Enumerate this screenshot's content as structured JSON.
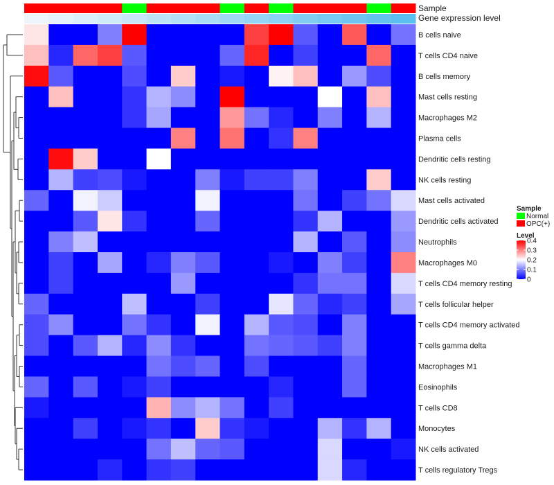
{
  "chart_data": {
    "type": "heatmap",
    "title": "",
    "annotation_tracks": [
      {
        "name": "Sample",
        "values": [
          "OPC(+)",
          "OPC(+)",
          "OPC(+)",
          "OPC(+)",
          "Normal",
          "OPC(+)",
          "OPC(+)",
          "OPC(+)",
          "Normal",
          "OPC(+)",
          "Normal",
          "OPC(+)",
          "OPC(+)",
          "OPC(+)",
          "Normal",
          "OPC(+)"
        ]
      },
      {
        "name": "Gene expression level",
        "values": [
          0.0,
          0.02,
          0.04,
          0.06,
          0.08,
          0.1,
          0.12,
          0.14,
          0.16,
          0.18,
          0.2,
          0.22,
          0.24,
          0.26,
          0.28,
          0.3
        ]
      }
    ],
    "rows": [
      "B cells naive",
      "T cells CD4 naive",
      "B cells memory",
      "Mast cells resting",
      "Macrophages M2",
      "Plasma cells",
      "Dendritic cells resting",
      "NK cells resting",
      "Mast cells activated",
      "Dendritic cells activated",
      "Neutrophils",
      "Macrophages M0",
      "T cells CD4 memory resting",
      "T cells follicular helper",
      "T cells CD4 memory activated",
      "T cells gamma delta",
      "Macrophages M1",
      "Eosinophils",
      "T cells CD8",
      "Monocytes",
      "NK cells activated",
      "T cells regulatory  Tregs"
    ],
    "n_columns": 16,
    "values": [
      [
        0.22,
        0.0,
        0.0,
        0.1,
        0.4,
        0.0,
        0.0,
        0.0,
        0.0,
        0.35,
        0.4,
        0.07,
        0.0,
        0.33,
        0.0,
        0.09
      ],
      [
        0.25,
        0.03,
        0.32,
        0.35,
        0.07,
        0.0,
        0.0,
        0.0,
        0.08,
        0.37,
        0.0,
        0.05,
        0.0,
        0.0,
        0.32,
        0.0
      ],
      [
        0.39,
        0.07,
        0.0,
        0.0,
        0.06,
        0.0,
        0.24,
        0.0,
        0.02,
        0.0,
        0.21,
        0.25,
        0.0,
        0.12,
        0.06,
        0.0
      ],
      [
        0.0,
        0.25,
        0.0,
        0.0,
        0.04,
        0.14,
        0.11,
        0.0,
        0.4,
        0.0,
        0.0,
        0.0,
        0.2,
        0.0,
        0.25,
        0.0
      ],
      [
        0.0,
        0.0,
        0.0,
        0.0,
        0.04,
        0.13,
        0.0,
        0.0,
        0.28,
        0.09,
        0.03,
        0.0,
        0.1,
        0.0,
        0.14,
        0.0
      ],
      [
        0.0,
        0.0,
        0.0,
        0.0,
        0.0,
        0.0,
        0.3,
        0.0,
        0.31,
        0.0,
        0.04,
        0.3,
        0.0,
        0.0,
        0.0,
        0.0
      ],
      [
        0.0,
        0.39,
        0.24,
        0.0,
        0.0,
        0.2,
        0.0,
        0.0,
        0.0,
        0.0,
        0.0,
        0.0,
        0.0,
        0.0,
        0.0,
        0.0
      ],
      [
        0.0,
        0.14,
        0.05,
        0.06,
        0.02,
        0.0,
        0.0,
        0.1,
        0.02,
        0.05,
        0.05,
        0.1,
        0.0,
        0.0,
        0.24,
        0.0
      ],
      [
        0.08,
        0.0,
        0.19,
        0.16,
        0.0,
        0.0,
        0.0,
        0.19,
        0.0,
        0.0,
        0.0,
        0.09,
        0.0,
        0.05,
        0.09,
        0.17
      ],
      [
        0.0,
        0.0,
        0.07,
        0.22,
        0.04,
        0.0,
        0.0,
        0.08,
        0.0,
        0.0,
        0.0,
        0.04,
        0.14,
        0.0,
        0.0,
        0.12
      ],
      [
        0.0,
        0.1,
        0.15,
        0.0,
        0.0,
        0.0,
        0.0,
        0.0,
        0.0,
        0.0,
        0.0,
        0.14,
        0.0,
        0.07,
        0.0,
        0.11
      ],
      [
        0.0,
        0.05,
        0.0,
        0.13,
        0.0,
        0.03,
        0.1,
        0.07,
        0.0,
        0.0,
        0.02,
        0.0,
        0.1,
        0.05,
        0.0,
        0.3
      ],
      [
        0.0,
        0.05,
        0.0,
        0.0,
        0.0,
        0.0,
        0.12,
        0.0,
        0.0,
        0.0,
        0.0,
        0.04,
        0.09,
        0.09,
        0.0,
        0.17
      ],
      [
        0.08,
        0.0,
        0.0,
        0.0,
        0.15,
        0.0,
        0.0,
        0.05,
        0.0,
        0.0,
        0.18,
        0.08,
        0.03,
        0.05,
        0.0,
        0.13
      ],
      [
        0.06,
        0.11,
        0.0,
        0.0,
        0.09,
        0.04,
        0.0,
        0.19,
        0.0,
        0.14,
        0.07,
        0.06,
        0.0,
        0.1,
        0.0,
        0.0
      ],
      [
        0.06,
        0.0,
        0.07,
        0.14,
        0.03,
        0.11,
        0.04,
        0.0,
        0.0,
        0.09,
        0.08,
        0.07,
        0.05,
        0.1,
        0.0,
        0.0
      ],
      [
        0.0,
        0.0,
        0.0,
        0.0,
        0.0,
        0.09,
        0.06,
        0.08,
        0.0,
        0.06,
        0.0,
        0.0,
        0.0,
        0.08,
        0.0,
        0.0
      ],
      [
        0.08,
        0.0,
        0.07,
        0.0,
        0.02,
        0.05,
        0.0,
        0.0,
        0.0,
        0.0,
        0.03,
        0.0,
        0.0,
        0.08,
        0.0,
        0.0
      ],
      [
        0.02,
        0.0,
        0.0,
        0.0,
        0.0,
        0.26,
        0.11,
        0.14,
        0.09,
        0.0,
        0.05,
        0.0,
        0.0,
        0.0,
        0.0,
        0.0
      ],
      [
        0.0,
        0.0,
        0.05,
        0.0,
        0.02,
        0.04,
        0.0,
        0.24,
        0.04,
        0.02,
        0.0,
        0.0,
        0.14,
        0.04,
        0.14,
        0.0
      ],
      [
        0.0,
        0.0,
        0.0,
        0.0,
        0.0,
        0.09,
        0.15,
        0.08,
        0.07,
        0.0,
        0.0,
        0.0,
        0.17,
        0.0,
        0.0,
        0.02
      ],
      [
        0.0,
        0.0,
        0.0,
        0.03,
        0.0,
        0.04,
        0.05,
        0.0,
        0.0,
        0.0,
        0.0,
        0.0,
        0.17,
        0.03,
        0.0,
        0.0
      ]
    ],
    "color_scale": {
      "low": "#0000ff",
      "mid": "#ffffff",
      "high": "#ff0000",
      "min": 0,
      "mid_value": 0.2,
      "max": 0.4
    },
    "legend": {
      "sample_title": "Sample",
      "sample_entries": [
        {
          "label": "Normal",
          "color": "#00ff00"
        },
        {
          "label": "OPC(+)",
          "color": "#ff0000"
        }
      ],
      "level_title": "Level",
      "level_ticks": [
        0.4,
        0.3,
        0.2,
        0.1,
        0
      ],
      "level_tick_labels": [
        "0.4",
        "0.3",
        "0.2",
        "0.1",
        "0"
      ],
      "placement": "right"
    },
    "row_dendrogram": true
  }
}
